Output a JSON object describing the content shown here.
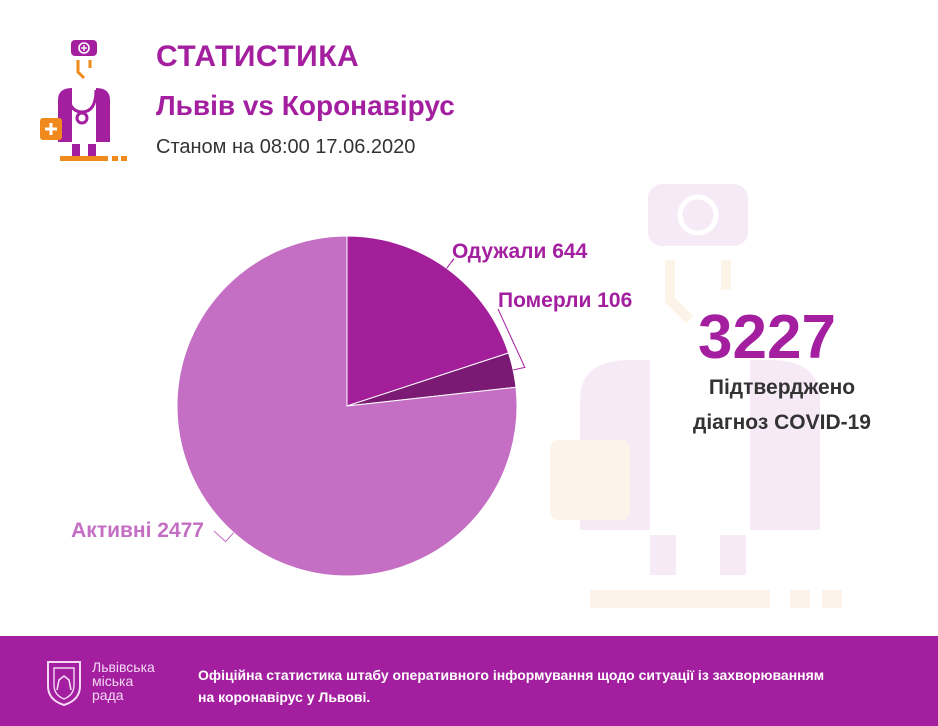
{
  "header": {
    "title": "СТАТИСТИКА",
    "subtitle": "Львів vs Коронавірус",
    "date": "Станом на 08:00 17.06.2020"
  },
  "summary": {
    "total": "3227",
    "label_line1": "Підтверджено",
    "label_line2": "діагноз COVID-19"
  },
  "footer": {
    "city_line1": "Львівська",
    "city_line2": "міська",
    "city_line3": "рада",
    "text": "Офіційна статистика штабу оперативного інформування щодо ситуації із захворюванням на коронавірус у Львові."
  },
  "colors": {
    "brand": "#a31fa0",
    "recovered": "#a31f9a",
    "died": "#7b1a74",
    "active": "#c46fc4",
    "accent_orange": "#f08a1c"
  },
  "chart_data": {
    "type": "pie",
    "title": "",
    "slices": [
      {
        "label": "Одужали 644",
        "name": "Одужали",
        "value": 644,
        "color": "#a31f9a"
      },
      {
        "label": "Померли 106",
        "name": "Померли",
        "value": 106,
        "color": "#7b1a74"
      },
      {
        "label": "Активні 2477",
        "name": "Активні",
        "value": 2477,
        "color": "#c46fc4"
      }
    ],
    "start_angle": "12 o'clock",
    "direction": "clockwise"
  }
}
